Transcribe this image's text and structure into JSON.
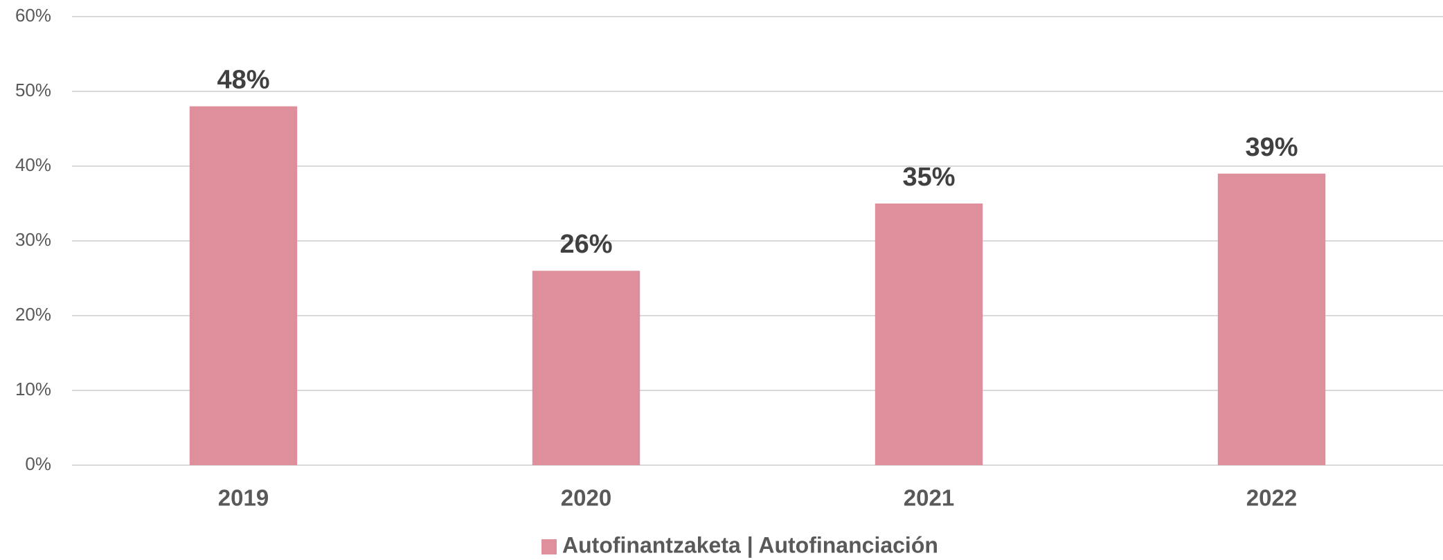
{
  "chart_data": {
    "type": "bar",
    "categories": [
      "2019",
      "2020",
      "2021",
      "2022"
    ],
    "series": [
      {
        "name": "Autofinantzaketa | Autofinanciación",
        "color": "#de8f9b",
        "values": [
          48,
          26,
          35,
          39
        ],
        "value_labels": [
          "48%",
          "26%",
          "35%",
          "39%"
        ]
      }
    ],
    "ylim": [
      0,
      60
    ],
    "yticks": [
      {
        "value": 0,
        "label": "0%"
      },
      {
        "value": 10,
        "label": "10%"
      },
      {
        "value": 20,
        "label": "20%"
      },
      {
        "value": 30,
        "label": "30%"
      },
      {
        "value": 40,
        "label": "40%"
      },
      {
        "value": 50,
        "label": "50%"
      },
      {
        "value": 60,
        "label": "60%"
      }
    ],
    "grid": true,
    "legend": "bottom"
  }
}
